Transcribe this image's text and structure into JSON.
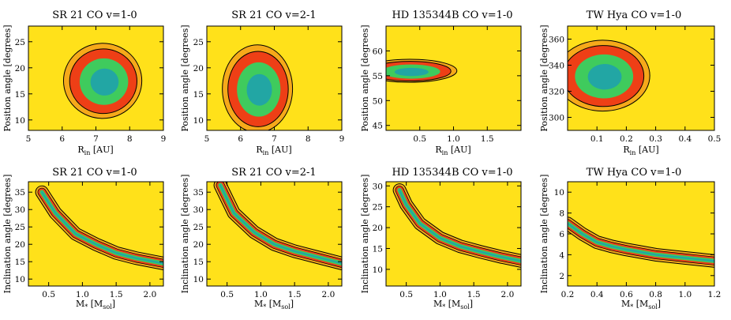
{
  "figure": {
    "description_colors": {
      "background": "#FFE11A",
      "level1": "#F6A91A",
      "level2": "#EE3F16",
      "level3": "#3FCB5D",
      "level4": "#22A6A4",
      "contour": "#000000"
    }
  },
  "chart_data": [
    {
      "type": "heatmap",
      "title": "SR 21 CO v=1-0",
      "xlabel": "R_in [AU]",
      "ylabel": "Position angle [degrees]",
      "xlim": [
        5,
        9
      ],
      "ylim": [
        8,
        28
      ],
      "xticks": [
        5,
        6,
        7,
        8,
        9
      ],
      "yticks": [
        10,
        15,
        20,
        25
      ],
      "peak": {
        "x": 7.2,
        "y": 17.5
      },
      "contour_levels": [
        1,
        2,
        3
      ]
    },
    {
      "type": "heatmap",
      "title": "SR 21 CO v=2-1",
      "xlabel": "R_in [AU]",
      "ylabel": "Position angle [degrees]",
      "xlim": [
        5,
        9
      ],
      "ylim": [
        8,
        28
      ],
      "xticks": [
        5,
        6,
        7,
        8,
        9
      ],
      "yticks": [
        10,
        15,
        20,
        25
      ],
      "peak": {
        "x": 6.5,
        "y": 16.0
      },
      "contour_levels": [
        1,
        2,
        3
      ]
    },
    {
      "type": "heatmap",
      "title": "HD 135344B CO v=1-0",
      "xlabel": "R_in [AU]",
      "ylabel": "Position angle [degrees]",
      "xlim": [
        0,
        2
      ],
      "ylim": [
        44,
        65
      ],
      "xticks": [
        0.5,
        1.0,
        1.5
      ],
      "yticks": [
        45,
        50,
        55,
        60
      ],
      "peak": {
        "x": 0.35,
        "y": 56
      },
      "contour_levels": [
        1,
        2,
        3
      ]
    },
    {
      "type": "heatmap",
      "title": "TW Hya CO v=1-0",
      "xlabel": "R_in [AU]",
      "ylabel": "Position angle [degrees]",
      "xlim": [
        0,
        0.5
      ],
      "ylim": [
        290,
        370
      ],
      "xticks": [
        0.1,
        0.2,
        0.3,
        0.4,
        0.5
      ],
      "yticks": [
        300,
        320,
        340,
        360
      ],
      "peak": {
        "x": 0.12,
        "y": 332
      },
      "contour_levels": [
        1,
        2,
        3
      ]
    },
    {
      "type": "heatmap",
      "title": "SR 21 CO v=1-0",
      "xlabel": "M_* [M_sol]",
      "ylabel": "Inclination angle [degrees]",
      "xlim": [
        0.2,
        2.2
      ],
      "ylim": [
        8,
        38
      ],
      "xticks": [
        0.5,
        1.0,
        1.5,
        2.0
      ],
      "yticks": [
        10,
        15,
        20,
        25,
        30,
        35
      ],
      "ridge": [
        [
          0.4,
          35
        ],
        [
          0.6,
          29
        ],
        [
          0.9,
          23
        ],
        [
          1.2,
          20
        ],
        [
          1.5,
          17.5
        ],
        [
          1.8,
          16
        ],
        [
          2.2,
          14.5
        ]
      ],
      "contour_levels": [
        1,
        2,
        3
      ]
    },
    {
      "type": "heatmap",
      "title": "SR 21 CO v=2-1",
      "xlabel": "M_* [M_sol]",
      "ylabel": "Inclination angle [degrees]",
      "xlim": [
        0.2,
        2.2
      ],
      "ylim": [
        8,
        38
      ],
      "xticks": [
        0.5,
        1.0,
        1.5,
        2.0
      ],
      "yticks": [
        10,
        15,
        20,
        25,
        30,
        35
      ],
      "ridge": [
        [
          0.4,
          37
        ],
        [
          0.6,
          29
        ],
        [
          0.9,
          23.5
        ],
        [
          1.2,
          20
        ],
        [
          1.5,
          18
        ],
        [
          1.8,
          16.5
        ],
        [
          2.2,
          14.5
        ]
      ],
      "contour_levels": [
        1,
        2,
        3
      ]
    },
    {
      "type": "heatmap",
      "title": "HD 135344B CO v=1-0",
      "xlabel": "M_* [M_sol]",
      "ylabel": "Inclination angle [degrees]",
      "xlim": [
        0.2,
        2.2
      ],
      "ylim": [
        6,
        31
      ],
      "xticks": [
        0.5,
        1.0,
        1.5,
        2.0
      ],
      "yticks": [
        10,
        15,
        20,
        25,
        30
      ],
      "ridge": [
        [
          0.4,
          29
        ],
        [
          0.5,
          25.5
        ],
        [
          0.7,
          21
        ],
        [
          1.0,
          17.5
        ],
        [
          1.3,
          15.5
        ],
        [
          1.6,
          14.2
        ],
        [
          1.9,
          13
        ],
        [
          2.2,
          12
        ]
      ],
      "contour_levels": [
        1,
        2,
        3
      ]
    },
    {
      "type": "heatmap",
      "title": "TW Hya CO v=1-0",
      "xlabel": "M_* [M_sol]",
      "ylabel": "Inclination angle [degrees]",
      "xlim": [
        0.2,
        1.2
      ],
      "ylim": [
        1,
        11
      ],
      "xticks": [
        0.2,
        0.4,
        0.6,
        0.8,
        1.0,
        1.2
      ],
      "yticks": [
        2,
        4,
        6,
        8,
        10
      ],
      "ridge": [
        [
          0.2,
          7
        ],
        [
          0.3,
          6
        ],
        [
          0.4,
          5.2
        ],
        [
          0.5,
          4.8
        ],
        [
          0.6,
          4.5
        ],
        [
          0.8,
          4.0
        ],
        [
          1.0,
          3.7
        ],
        [
          1.2,
          3.4
        ]
      ],
      "contour_levels": [
        1,
        2,
        3
      ]
    }
  ]
}
